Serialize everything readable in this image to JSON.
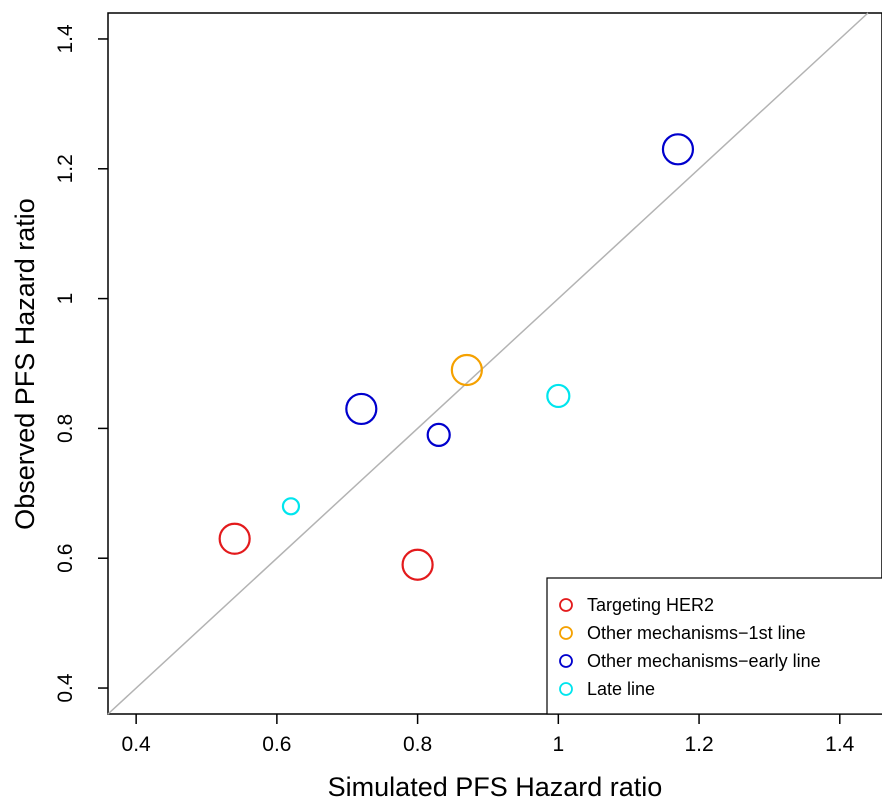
{
  "chart_data": {
    "type": "scatter",
    "xlabel": "Simulated PFS Hazard ratio",
    "ylabel": "Observed PFS Hazard ratio",
    "xlim": [
      0.36,
      1.46
    ],
    "ylim": [
      0.36,
      1.44
    ],
    "x_ticks": [
      "0.4",
      "0.6",
      "0.8",
      "1",
      "1.2",
      "1.4"
    ],
    "y_ticks": [
      "0.4",
      "0.6",
      "0.8",
      "1",
      "1.2",
      "1.4"
    ],
    "reference_line": "y = x",
    "legend_position": "bottom-right",
    "series": [
      {
        "name": "Targeting HER2",
        "color": "#E31A1C",
        "points": [
          {
            "x": 0.54,
            "y": 0.63,
            "size": "large"
          },
          {
            "x": 0.8,
            "y": 0.59,
            "size": "large"
          }
        ]
      },
      {
        "name": "Other mechanisms−1st line",
        "color": "#F5A100",
        "points": [
          {
            "x": 0.87,
            "y": 0.89,
            "size": "large"
          }
        ]
      },
      {
        "name": "Other mechanisms−early line",
        "color": "#0000CD",
        "points": [
          {
            "x": 0.72,
            "y": 0.83,
            "size": "large"
          },
          {
            "x": 0.83,
            "y": 0.79,
            "size": "medium"
          },
          {
            "x": 1.17,
            "y": 1.23,
            "size": "large"
          }
        ]
      },
      {
        "name": "Late line",
        "color": "#00E5EE",
        "points": [
          {
            "x": 0.62,
            "y": 0.68,
            "size": "small"
          },
          {
            "x": 1.0,
            "y": 0.85,
            "size": "medium"
          }
        ]
      }
    ]
  }
}
